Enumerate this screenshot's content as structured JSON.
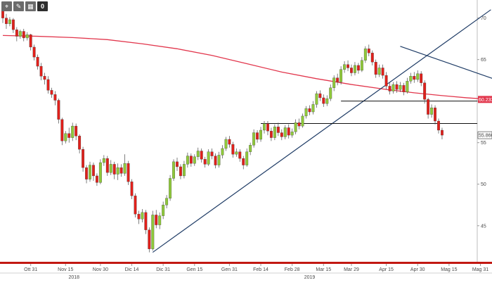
{
  "toolbar": {
    "tools": [
      {
        "icon": "crosshair-icon",
        "glyph": "⌖"
      },
      {
        "icon": "pencil-icon",
        "glyph": "✎"
      },
      {
        "icon": "grid-icon",
        "glyph": "▦"
      },
      {
        "icon": "zero-icon",
        "glyph": "0"
      }
    ]
  },
  "colors": {
    "up_candle": "#8fc93a",
    "down_candle": "#e0201b",
    "moving_average": "#e2374d",
    "trendline": "#1f3c66",
    "support": "#111111",
    "bottom_bar": "#c21812"
  },
  "chart_data": {
    "type": "candlestick",
    "ylim": [
      41,
      72
    ],
    "yticks": [
      45,
      50,
      55,
      60,
      65,
      70
    ],
    "xticks": [
      "Ott 31",
      "Nov 15",
      "Nov 30",
      "Dic 14",
      "Dic 31",
      "Gen 15",
      "Gen 31",
      "Feb 14",
      "Feb 28",
      "Mar 15",
      "Mar 29",
      "Apr 15",
      "Apr 30",
      "Mag 15",
      "Mag 31"
    ],
    "years": [
      "2018",
      "2019"
    ],
    "price_labels": {
      "moving_average": "60.2338",
      "last_close": "55.8600"
    },
    "moving_average": [
      [
        0,
        67.9
      ],
      [
        10,
        67.8
      ],
      [
        20,
        67.65
      ],
      [
        30,
        67.4
      ],
      [
        40,
        66.9
      ],
      [
        50,
        66.3
      ],
      [
        60,
        65.5
      ],
      [
        70,
        64.5
      ],
      [
        80,
        63.5
      ],
      [
        90,
        62.7
      ],
      [
        100,
        62.0
      ],
      [
        110,
        61.4
      ],
      [
        118,
        61.0
      ],
      [
        125,
        60.7
      ],
      [
        133,
        60.4
      ],
      [
        140,
        60.2
      ]
    ],
    "resistance_levels": [
      60.0,
      57.3
    ],
    "trendlines": [
      {
        "from": [
          43,
          41.8
        ],
        "to": [
          140,
          71.0
        ]
      },
      {
        "from": [
          114,
          66.6
        ],
        "to": [
          142,
          62.5
        ]
      }
    ],
    "candles": [
      [
        71.5,
        70.0,
        71.8,
        69.4
      ],
      [
        70.0,
        69.3,
        70.5,
        68.7
      ],
      [
        69.3,
        69.8,
        70.1,
        69.0
      ],
      [
        69.8,
        68.6,
        70.0,
        68.2
      ],
      [
        68.6,
        67.8,
        68.9,
        67.2
      ],
      [
        67.8,
        68.4,
        68.6,
        67.5
      ],
      [
        68.4,
        67.6,
        68.7,
        67.2
      ],
      [
        67.6,
        68.0,
        68.3,
        67.3
      ],
      [
        68.0,
        66.5,
        68.1,
        66.1
      ],
      [
        66.5,
        65.3,
        66.8,
        64.9
      ],
      [
        65.3,
        64.2,
        65.6,
        63.8
      ],
      [
        64.2,
        63.0,
        64.6,
        62.5
      ],
      [
        63.0,
        62.6,
        63.4,
        62.0
      ],
      [
        62.6,
        61.3,
        63.0,
        60.9
      ],
      [
        61.3,
        60.8,
        61.6,
        60.4
      ],
      [
        60.8,
        60.1,
        61.2,
        59.5
      ],
      [
        60.1,
        57.8,
        60.3,
        57.3
      ],
      [
        57.8,
        55.2,
        58.0,
        54.7
      ],
      [
        55.2,
        56.1,
        56.4,
        54.9
      ],
      [
        56.1,
        55.6,
        56.8,
        55.0
      ],
      [
        55.6,
        57.0,
        57.4,
        55.2
      ],
      [
        57.0,
        55.8,
        57.3,
        55.3
      ],
      [
        55.8,
        54.2,
        56.0,
        53.7
      ],
      [
        54.2,
        52.0,
        54.5,
        51.5
      ],
      [
        52.0,
        50.6,
        52.3,
        50.1
      ],
      [
        50.6,
        52.3,
        52.7,
        50.3
      ],
      [
        52.3,
        51.0,
        52.6,
        50.4
      ],
      [
        51.0,
        50.2,
        51.3,
        49.8
      ],
      [
        50.2,
        52.6,
        53.0,
        50.0
      ],
      [
        52.6,
        53.1,
        53.5,
        52.2
      ],
      [
        53.1,
        51.4,
        53.4,
        51.0
      ],
      [
        51.4,
        52.4,
        52.9,
        51.1
      ],
      [
        52.4,
        51.2,
        52.7,
        50.6
      ],
      [
        51.2,
        52.0,
        52.5,
        50.5
      ],
      [
        52.0,
        51.3,
        52.4,
        50.9
      ],
      [
        51.3,
        52.5,
        53.6,
        51.0
      ],
      [
        52.5,
        50.3,
        52.8,
        49.9
      ],
      [
        50.3,
        48.6,
        50.6,
        48.2
      ],
      [
        48.6,
        46.4,
        48.9,
        46.0
      ],
      [
        46.4,
        45.8,
        46.8,
        45.2
      ],
      [
        45.8,
        46.6,
        47.0,
        45.4
      ],
      [
        46.6,
        44.5,
        46.9,
        44.0
      ],
      [
        44.5,
        42.2,
        44.8,
        41.8
      ],
      [
        42.2,
        46.3,
        46.8,
        42.0
      ],
      [
        46.3,
        45.1,
        46.9,
        44.7
      ],
      [
        45.1,
        46.2,
        46.6,
        44.6
      ],
      [
        46.2,
        47.5,
        47.9,
        45.8
      ],
      [
        47.5,
        48.3,
        48.7,
        47.1
      ],
      [
        48.3,
        50.7,
        51.1,
        48.0
      ],
      [
        50.7,
        52.7,
        53.0,
        50.4
      ],
      [
        52.7,
        52.1,
        53.2,
        51.6
      ],
      [
        52.1,
        51.0,
        52.4,
        50.6
      ],
      [
        51.0,
        52.4,
        52.8,
        50.7
      ],
      [
        52.4,
        53.4,
        53.8,
        52.0
      ],
      [
        53.4,
        52.5,
        53.7,
        52.1
      ],
      [
        52.5,
        53.3,
        53.6,
        52.2
      ],
      [
        53.3,
        54.0,
        54.4,
        52.9
      ],
      [
        54.0,
        53.0,
        54.3,
        52.6
      ],
      [
        53.0,
        52.4,
        53.3,
        52.0
      ],
      [
        52.4,
        53.9,
        54.2,
        52.2
      ],
      [
        53.9,
        53.4,
        54.3,
        53.0
      ],
      [
        53.4,
        52.3,
        53.7,
        51.9
      ],
      [
        52.3,
        53.5,
        53.9,
        52.0
      ],
      [
        53.5,
        54.3,
        54.7,
        53.1
      ],
      [
        54.3,
        55.4,
        55.7,
        54.0
      ],
      [
        55.4,
        54.8,
        55.8,
        54.4
      ],
      [
        54.8,
        53.6,
        55.1,
        53.2
      ],
      [
        53.6,
        53.9,
        54.3,
        53.3
      ],
      [
        53.9,
        53.1,
        54.2,
        52.7
      ],
      [
        53.1,
        52.3,
        53.4,
        51.8
      ],
      [
        52.3,
        53.9,
        54.3,
        52.1
      ],
      [
        53.9,
        54.7,
        55.0,
        53.5
      ],
      [
        54.7,
        56.2,
        56.6,
        54.4
      ],
      [
        56.2,
        55.4,
        56.5,
        55.0
      ],
      [
        55.4,
        56.5,
        56.9,
        55.1
      ],
      [
        56.5,
        57.3,
        57.6,
        56.1
      ],
      [
        57.3,
        56.4,
        57.6,
        55.9
      ],
      [
        56.4,
        55.6,
        56.8,
        55.2
      ],
      [
        55.6,
        56.9,
        57.2,
        55.3
      ],
      [
        56.9,
        56.2,
        57.4,
        55.8
      ],
      [
        56.2,
        55.7,
        56.6,
        55.3
      ],
      [
        55.7,
        56.8,
        57.1,
        55.4
      ],
      [
        56.8,
        55.9,
        57.2,
        55.5
      ],
      [
        55.9,
        56.3,
        56.7,
        55.6
      ],
      [
        56.3,
        57.4,
        57.8,
        56.0
      ],
      [
        57.4,
        57.0,
        57.9,
        56.6
      ],
      [
        57.0,
        58.2,
        58.5,
        56.8
      ],
      [
        58.2,
        59.1,
        59.4,
        57.9
      ],
      [
        59.1,
        58.7,
        59.5,
        58.3
      ],
      [
        58.7,
        59.6,
        60.0,
        58.4
      ],
      [
        59.6,
        60.9,
        61.2,
        59.2
      ],
      [
        60.9,
        60.4,
        61.3,
        60.0
      ],
      [
        60.4,
        59.7,
        60.8,
        59.3
      ],
      [
        59.7,
        60.3,
        60.7,
        59.4
      ],
      [
        60.3,
        61.6,
        62.0,
        60.0
      ],
      [
        61.6,
        62.8,
        63.1,
        61.2
      ],
      [
        62.8,
        62.3,
        63.3,
        61.9
      ],
      [
        62.3,
        63.8,
        64.2,
        62.0
      ],
      [
        63.8,
        64.4,
        64.8,
        63.4
      ],
      [
        64.4,
        64.0,
        64.9,
        63.6
      ],
      [
        64.0,
        63.4,
        64.4,
        63.0
      ],
      [
        63.4,
        64.3,
        64.7,
        63.1
      ],
      [
        64.3,
        63.7,
        64.6,
        63.3
      ],
      [
        63.7,
        64.9,
        65.3,
        63.5
      ],
      [
        64.9,
        66.3,
        66.6,
        64.6
      ],
      [
        66.3,
        65.8,
        66.8,
        65.4
      ],
      [
        65.8,
        64.7,
        66.1,
        64.3
      ],
      [
        64.7,
        63.2,
        65.0,
        62.8
      ],
      [
        63.2,
        64.0,
        64.4,
        62.9
      ],
      [
        64.0,
        63.1,
        64.4,
        62.7
      ],
      [
        63.1,
        61.8,
        63.5,
        61.4
      ],
      [
        61.8,
        61.2,
        62.2,
        60.8
      ],
      [
        61.2,
        62.0,
        62.3,
        60.9
      ],
      [
        62.0,
        61.4,
        62.4,
        61.0
      ],
      [
        61.4,
        61.9,
        62.3,
        61.1
      ],
      [
        61.9,
        61.1,
        62.2,
        60.7
      ],
      [
        61.1,
        62.4,
        62.8,
        60.9
      ],
      [
        62.4,
        63.0,
        63.4,
        62.1
      ],
      [
        63.0,
        62.6,
        63.5,
        62.2
      ],
      [
        62.6,
        63.3,
        63.7,
        62.3
      ],
      [
        63.3,
        62.2,
        63.6,
        61.8
      ],
      [
        62.2,
        60.2,
        62.5,
        59.7
      ],
      [
        60.2,
        58.4,
        60.4,
        57.9
      ],
      [
        58.4,
        59.2,
        59.6,
        58.0
      ],
      [
        59.2,
        57.6,
        59.5,
        57.2
      ],
      [
        57.6,
        56.5,
        57.9,
        56.1
      ],
      [
        56.5,
        55.9,
        56.8,
        55.4
      ]
    ]
  }
}
